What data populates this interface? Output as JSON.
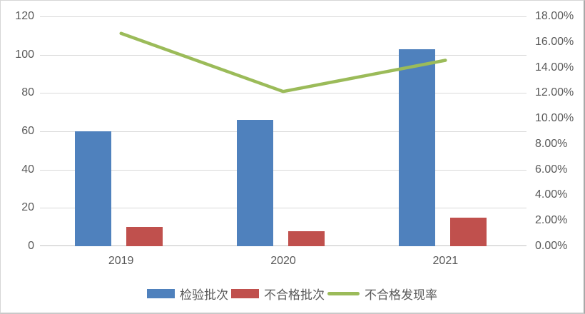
{
  "chart_data": {
    "type": "bar",
    "subtype": "combo-bar-line-dual-axis",
    "categories": [
      "2019",
      "2020",
      "2021"
    ],
    "series": [
      {
        "name": "检验批次",
        "render": "bar",
        "axis": "left",
        "color": "#4F81BD",
        "values": [
          60,
          66,
          103
        ]
      },
      {
        "name": "不合格批次",
        "render": "bar",
        "axis": "left",
        "color": "#C0504D",
        "values": [
          10,
          8,
          15
        ]
      },
      {
        "name": "不合格发现率",
        "render": "line",
        "axis": "right",
        "color": "#9BBB59",
        "values": [
          16.67,
          12.12,
          14.56
        ],
        "values_display": [
          "16.67%",
          "12.12%",
          "14.56%"
        ]
      }
    ],
    "title": "",
    "xlabel": "",
    "ylabel": "",
    "left_axis": {
      "min": 0,
      "max": 120,
      "step": 20,
      "ticks": [
        "0",
        "20",
        "40",
        "60",
        "80",
        "100",
        "120"
      ]
    },
    "right_axis": {
      "min": 0,
      "max": 18,
      "step": 2,
      "ticks": [
        "0.00%",
        "2.00%",
        "4.00%",
        "6.00%",
        "8.00%",
        "10.00%",
        "12.00%",
        "14.00%",
        "16.00%",
        "18.00%"
      ]
    },
    "grid": true,
    "legend_position": "bottom",
    "legend": [
      "检验批次",
      "不合格批次",
      "不合格发现率"
    ]
  },
  "colors": {
    "bar_blue": "#4F81BD",
    "bar_red": "#C0504D",
    "line_green": "#9BBB59",
    "gridline": "#d9d9d9",
    "axis_zero_line": "#c0c0c0",
    "text": "#595959",
    "background": "#ffffff"
  }
}
